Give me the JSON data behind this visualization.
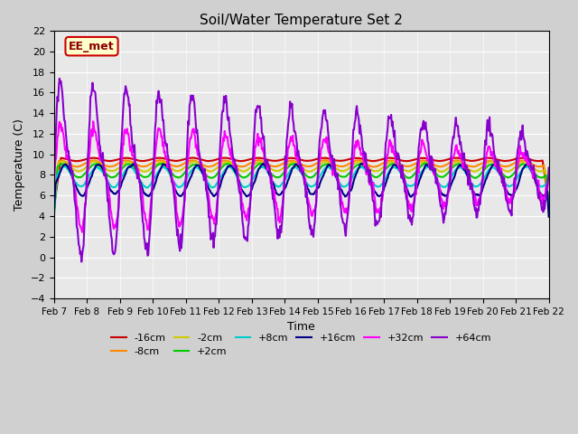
{
  "title": "Soil/Water Temperature Set 2",
  "xlabel": "Time",
  "ylabel": "Temperature (C)",
  "ylim": [
    -4,
    22
  ],
  "yticks": [
    -4,
    -2,
    0,
    2,
    4,
    6,
    8,
    10,
    12,
    14,
    16,
    18,
    20,
    22
  ],
  "x_labels": [
    "Feb 7",
    "Feb 8",
    "Feb 9",
    "Feb 10",
    "Feb 11",
    "Feb 12",
    "Feb 13",
    "Feb 14",
    "Feb 15",
    "Feb 16",
    "Feb 17",
    "Feb 18",
    "Feb 19",
    "Feb 20",
    "Feb 21",
    "Feb 22"
  ],
  "annotation_text": "EE_met",
  "annotation_bg": "#ffffcc",
  "annotation_border": "#cc0000",
  "plot_bg": "#e8e8e8",
  "series": [
    {
      "label": "-16cm",
      "color": "#cc0000",
      "linewidth": 1.5
    },
    {
      "label": "-8cm",
      "color": "#ff8800",
      "linewidth": 1.5
    },
    {
      "label": "-2cm",
      "color": "#cccc00",
      "linewidth": 1.5
    },
    {
      "label": "+2cm",
      "color": "#00cc00",
      "linewidth": 1.5
    },
    {
      "label": "+8cm",
      "color": "#00cccc",
      "linewidth": 1.5
    },
    {
      "label": "+16cm",
      "color": "#000088",
      "linewidth": 1.5
    },
    {
      "label": "+32cm",
      "color": "#ff00ff",
      "linewidth": 1.5
    },
    {
      "label": "+64cm",
      "color": "#8800cc",
      "linewidth": 1.5
    }
  ]
}
